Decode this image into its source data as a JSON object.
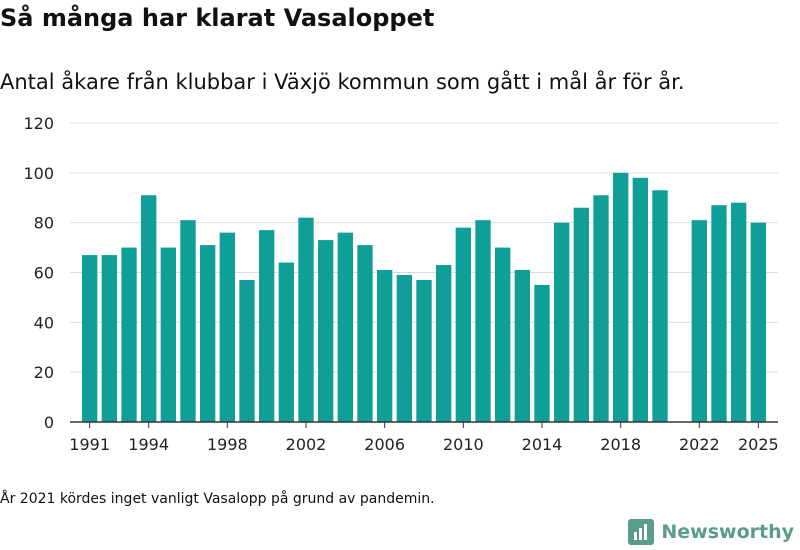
{
  "title": "Så många har klarat Vasaloppet",
  "subtitle": "Antal åkare från klubbar i Växjö kommun som gått i mål år för år.",
  "note": "År 2021 kördes inget vanligt Vasalopp på grund av pandemin.",
  "brand": {
    "name": "Newsworthy",
    "icon": "newsworthy-logo-icon",
    "color": "#5a9c8c"
  },
  "colors": {
    "bar": "#0f9e98",
    "grid": "#dddddd",
    "axis": "#333333",
    "text": "#222222"
  },
  "chart_data": {
    "type": "bar",
    "x": [
      1991,
      1992,
      1993,
      1994,
      1995,
      1996,
      1997,
      1998,
      1999,
      2000,
      2001,
      2002,
      2003,
      2004,
      2005,
      2006,
      2007,
      2008,
      2009,
      2010,
      2011,
      2012,
      2013,
      2014,
      2015,
      2016,
      2017,
      2018,
      2019,
      2020,
      2022,
      2023,
      2024,
      2025
    ],
    "values": [
      67,
      67,
      70,
      91,
      70,
      81,
      71,
      76,
      57,
      77,
      64,
      82,
      73,
      76,
      71,
      61,
      59,
      57,
      63,
      78,
      81,
      70,
      61,
      55,
      80,
      86,
      91,
      100,
      98,
      93,
      81,
      87,
      88,
      80
    ],
    "xticks": [
      "1991",
      "1994",
      "1998",
      "2002",
      "2006",
      "2010",
      "2014",
      "2018",
      "2022",
      "2025"
    ],
    "yticks": [
      "0",
      "20",
      "40",
      "60",
      "80",
      "100",
      "120"
    ],
    "ylim": [
      0,
      120
    ],
    "xlim": [
      1990,
      2026
    ],
    "grid": true
  }
}
